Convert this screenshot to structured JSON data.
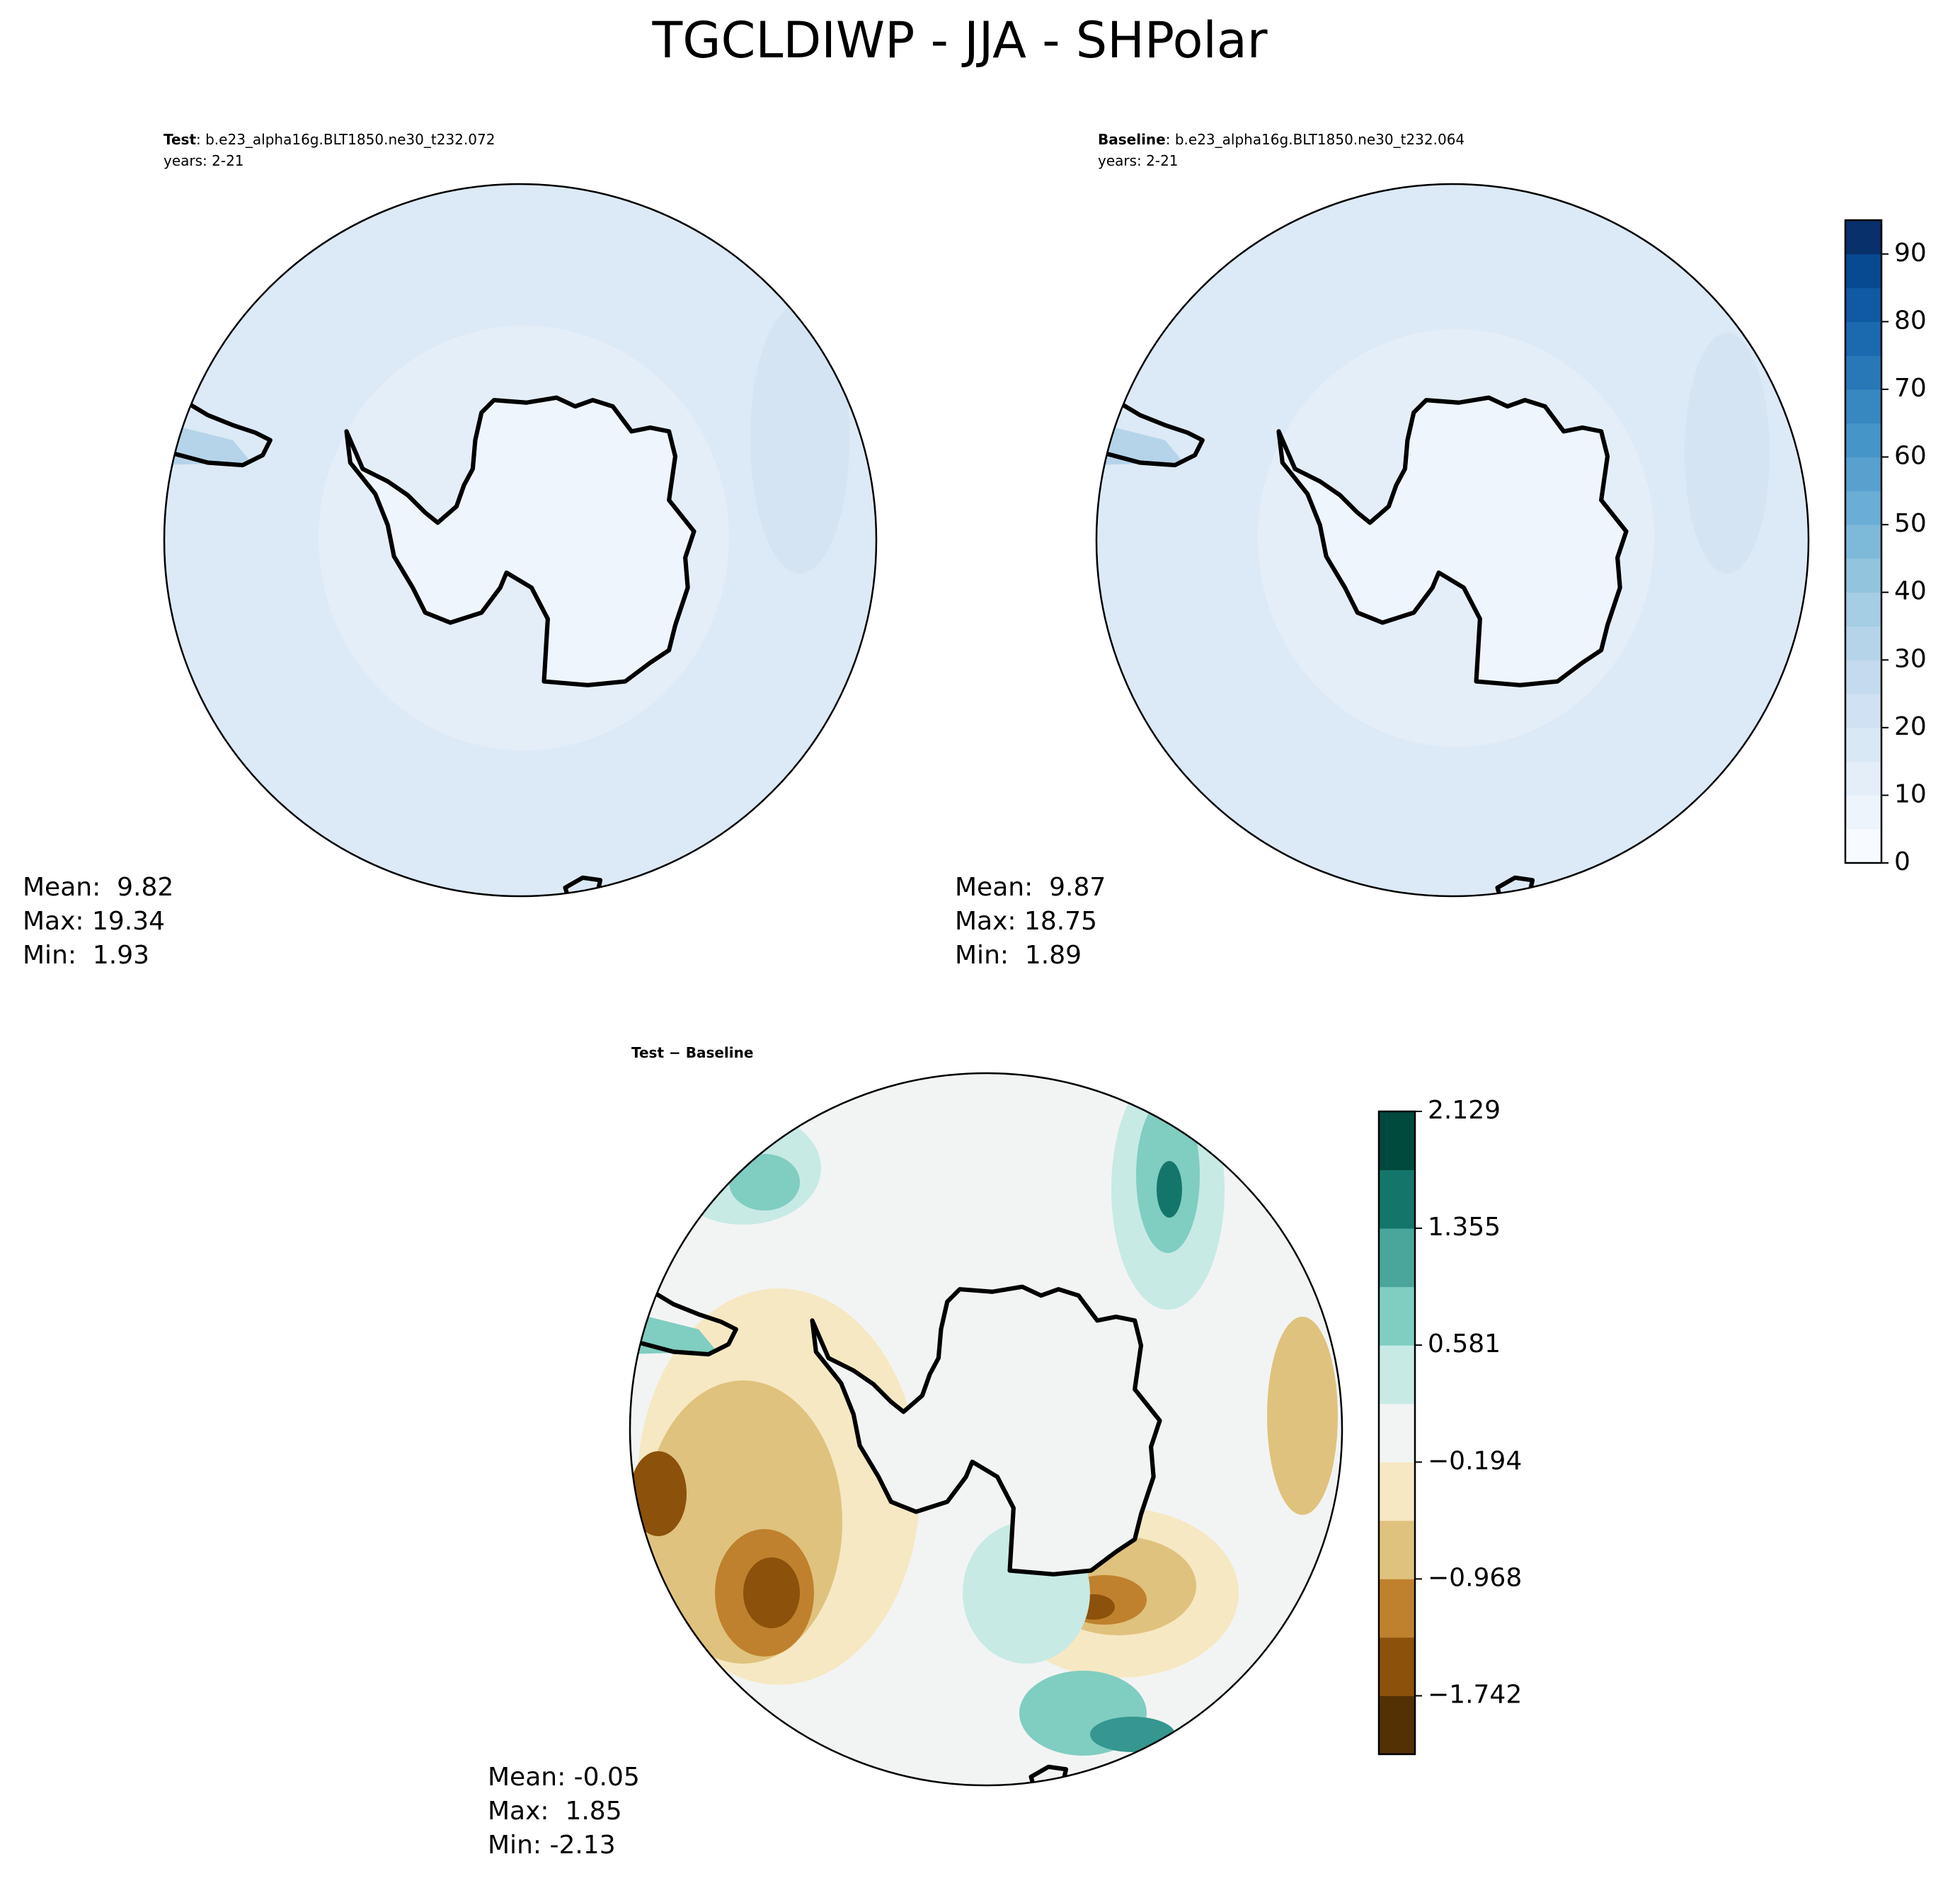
{
  "title": "TGCLDIWP - JJA - SHPolar",
  "panels": [
    {
      "label": "Test",
      "case": ": b.e23_alpha16g.BLT1850.ne30_t232.072",
      "years": "years: 2-21",
      "stats": [
        "Mean:  9.82",
        "Max: 19.34",
        "Min:  1.93"
      ]
    },
    {
      "label": "Baseline",
      "case": ": b.e23_alpha16g.BLT1850.ne30_t232.064",
      "years": "years: 2-21",
      "stats": [
        "Mean:  9.87",
        "Max: 18.75",
        "Min:  1.89"
      ]
    },
    {
      "label": "Test − Baseline",
      "stats": [
        "Mean: -0.05",
        "Max:  1.85",
        "Min: -2.13"
      ]
    }
  ],
  "colorbars": [
    {
      "lim": [
        0,
        95
      ],
      "ticks": [
        0,
        10,
        20,
        30,
        40,
        50,
        60,
        70,
        80,
        90
      ],
      "colors": [
        "#f7fbff",
        "#edf4fc",
        "#e3eef9",
        "#d9e8f5",
        "#cfe1f2",
        "#c4daee",
        "#b5d4e9",
        "#a5cde3",
        "#93c4de",
        "#7fb9da",
        "#6aaed6",
        "#58a1cf",
        "#4695c8",
        "#3787c0",
        "#2878b8",
        "#1b69af",
        "#0f5aa3",
        "#084a91",
        "#08306b"
      ]
    },
    {
      "lim": [
        -2.129,
        2.129
      ],
      "ticks": [
        {
          "value": -1.742,
          "label": "−1.742"
        },
        {
          "value": -0.968,
          "label": "−0.968"
        },
        {
          "value": -0.194,
          "label": "−0.194"
        },
        0.581,
        1.355,
        2.129
      ],
      "colors": [
        "#543005",
        "#8c510a",
        "#bf812d",
        "#dfc27d",
        "#f6e8c3",
        "#f2f4f3",
        "#c7eae5",
        "#80cdc1",
        "#4aa69a",
        "#14766b",
        "#00493d"
      ]
    }
  ]
}
